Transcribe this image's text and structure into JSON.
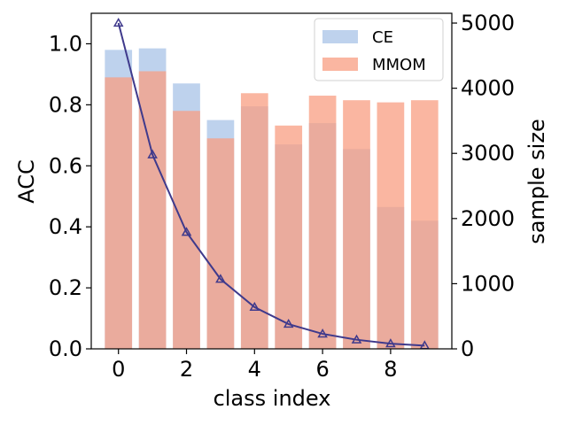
{
  "chart_data": {
    "type": "bar",
    "x": [
      0,
      1,
      2,
      3,
      4,
      5,
      6,
      7,
      8,
      9
    ],
    "xlabel": "class index",
    "ylabel": "ACC",
    "y2label": "sample size",
    "xlim": [
      -0.8,
      9.8
    ],
    "ylim": [
      0,
      1.1
    ],
    "y2lim": [
      0,
      5150
    ],
    "xticks": [
      0,
      2,
      4,
      6,
      8
    ],
    "yticks": [
      0.0,
      0.2,
      0.4,
      0.6,
      0.8,
      1.0
    ],
    "y2ticks": [
      0,
      1000,
      2000,
      3000,
      4000,
      5000
    ],
    "grid": false,
    "legend_position": "top-right",
    "series": [
      {
        "name": "CE",
        "type": "bar",
        "axis": "left",
        "color": "#aec7e8",
        "opacity": 0.8,
        "values": [
          0.98,
          0.985,
          0.87,
          0.75,
          0.795,
          0.67,
          0.74,
          0.655,
          0.465,
          0.42
        ]
      },
      {
        "name": "MMOM",
        "type": "bar",
        "axis": "left",
        "color": "#f89d82",
        "opacity": 0.75,
        "values": [
          0.89,
          0.91,
          0.78,
          0.69,
          0.838,
          0.732,
          0.83,
          0.815,
          0.808,
          0.815
        ]
      },
      {
        "name": "",
        "type": "line",
        "axis": "right",
        "color": "#3f3a8c",
        "marker": "triangle",
        "values": [
          5000,
          2980,
          1790,
          1070,
          640,
          380,
          230,
          140,
          80,
          50
        ]
      }
    ]
  }
}
